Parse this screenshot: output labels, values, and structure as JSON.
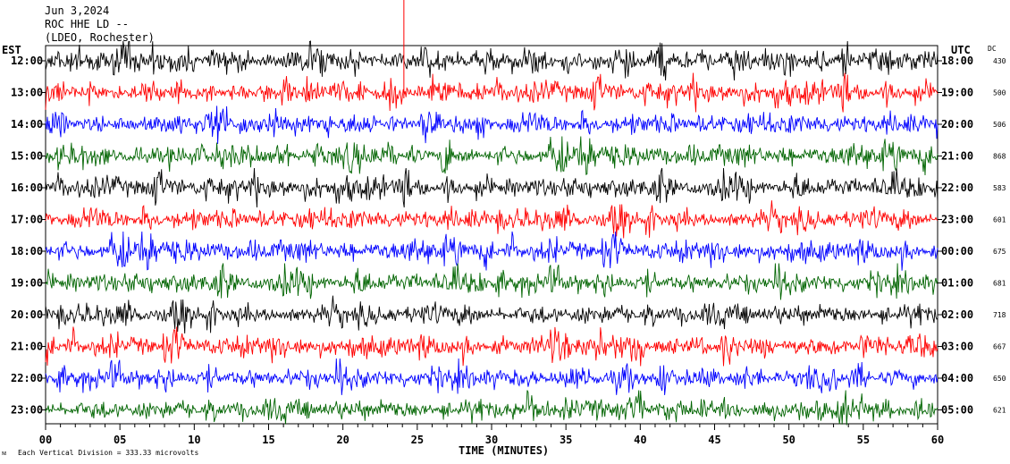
{
  "header": {
    "date": "Jun 3,2024",
    "station": "ROC HHE LD --",
    "network": "(LDEO, Rochester)"
  },
  "left_axis_label": "EST",
  "right_axis_label": "UTC",
  "dc_label": "DC",
  "footer": {
    "scale_note": "Each Vertical Division =  333.33 microvolts"
  },
  "colors": {
    "trace_cycle": [
      "#000000",
      "#ff0000",
      "#0000ff",
      "#006400"
    ],
    "event_marker": "#ff0000"
  },
  "chart_data": {
    "type": "line",
    "title": "",
    "xlabel": "TIME (MINUTES)",
    "ylabel": "",
    "xlim": [
      0,
      60
    ],
    "x_ticks": [
      "00",
      "05",
      "10",
      "15",
      "20",
      "25",
      "30",
      "35",
      "40",
      "45",
      "50",
      "55",
      "60"
    ],
    "rows": [
      {
        "est": "12:00",
        "utc": "18:00",
        "dc": "430"
      },
      {
        "est": "13:00",
        "utc": "19:00",
        "dc": "500"
      },
      {
        "est": "14:00",
        "utc": "20:00",
        "dc": "506"
      },
      {
        "est": "15:00",
        "utc": "21:00",
        "dc": "868"
      },
      {
        "est": "16:00",
        "utc": "22:00",
        "dc": "583"
      },
      {
        "est": "17:00",
        "utc": "23:00",
        "dc": "601"
      },
      {
        "est": "18:00",
        "utc": "00:00",
        "dc": "675"
      },
      {
        "est": "19:00",
        "utc": "01:00",
        "dc": "681"
      },
      {
        "est": "20:00",
        "utc": "02:00",
        "dc": "718"
      },
      {
        "est": "21:00",
        "utc": "03:00",
        "dc": "667"
      },
      {
        "est": "22:00",
        "utc": "04:00",
        "dc": "650"
      },
      {
        "est": "23:00",
        "utc": "05:00",
        "dc": "621"
      }
    ],
    "event_marker_minute": 24.1
  }
}
